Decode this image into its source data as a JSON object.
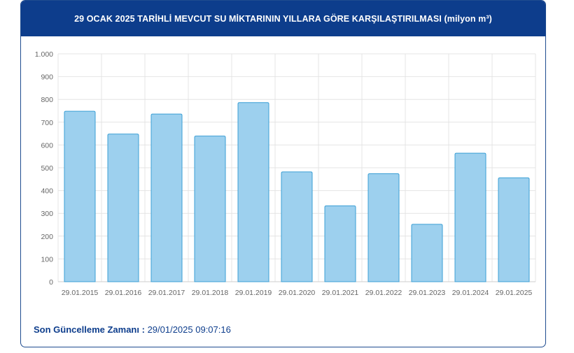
{
  "header": {
    "title": "29 OCAK 2025 TARİHLİ MEVCUT SU MİKTARININ YILLARA GÖRE KARŞILAŞTIRILMASI (milyon m³)"
  },
  "footer": {
    "update_label": "Son Güncelleme Zamanı :",
    "update_value": "29/01/2025 09:07:16"
  },
  "chart_data": {
    "type": "bar",
    "title": "29 OCAK 2025 TARİHLİ MEVCUT SU MİKTARININ YILLARA GÖRE KARŞILAŞTIRILMASI (milyon m³)",
    "categories": [
      "29.01.2015",
      "29.01.2016",
      "29.01.2017",
      "29.01.2018",
      "29.01.2019",
      "29.01.2020",
      "29.01.2021",
      "29.01.2022",
      "29.01.2023",
      "29.01.2024",
      "29.01.2025"
    ],
    "values": [
      748,
      648,
      736,
      639,
      786,
      482,
      333,
      474,
      252,
      564,
      456
    ],
    "ylim": [
      0,
      1000
    ],
    "yticks": [
      0,
      100,
      200,
      300,
      400,
      500,
      600,
      700,
      800,
      900,
      1000
    ],
    "ytick_labels": [
      "0",
      "100",
      "200",
      "300",
      "400",
      "500",
      "600",
      "700",
      "800",
      "900",
      "1.000"
    ],
    "xlabel": "",
    "ylabel": "",
    "grid": true,
    "colors": {
      "bar_fill": "#9dd0ee",
      "bar_stroke": "#3b9fd5",
      "grid": "#e4e4e4",
      "tick_text": "#666666"
    }
  }
}
